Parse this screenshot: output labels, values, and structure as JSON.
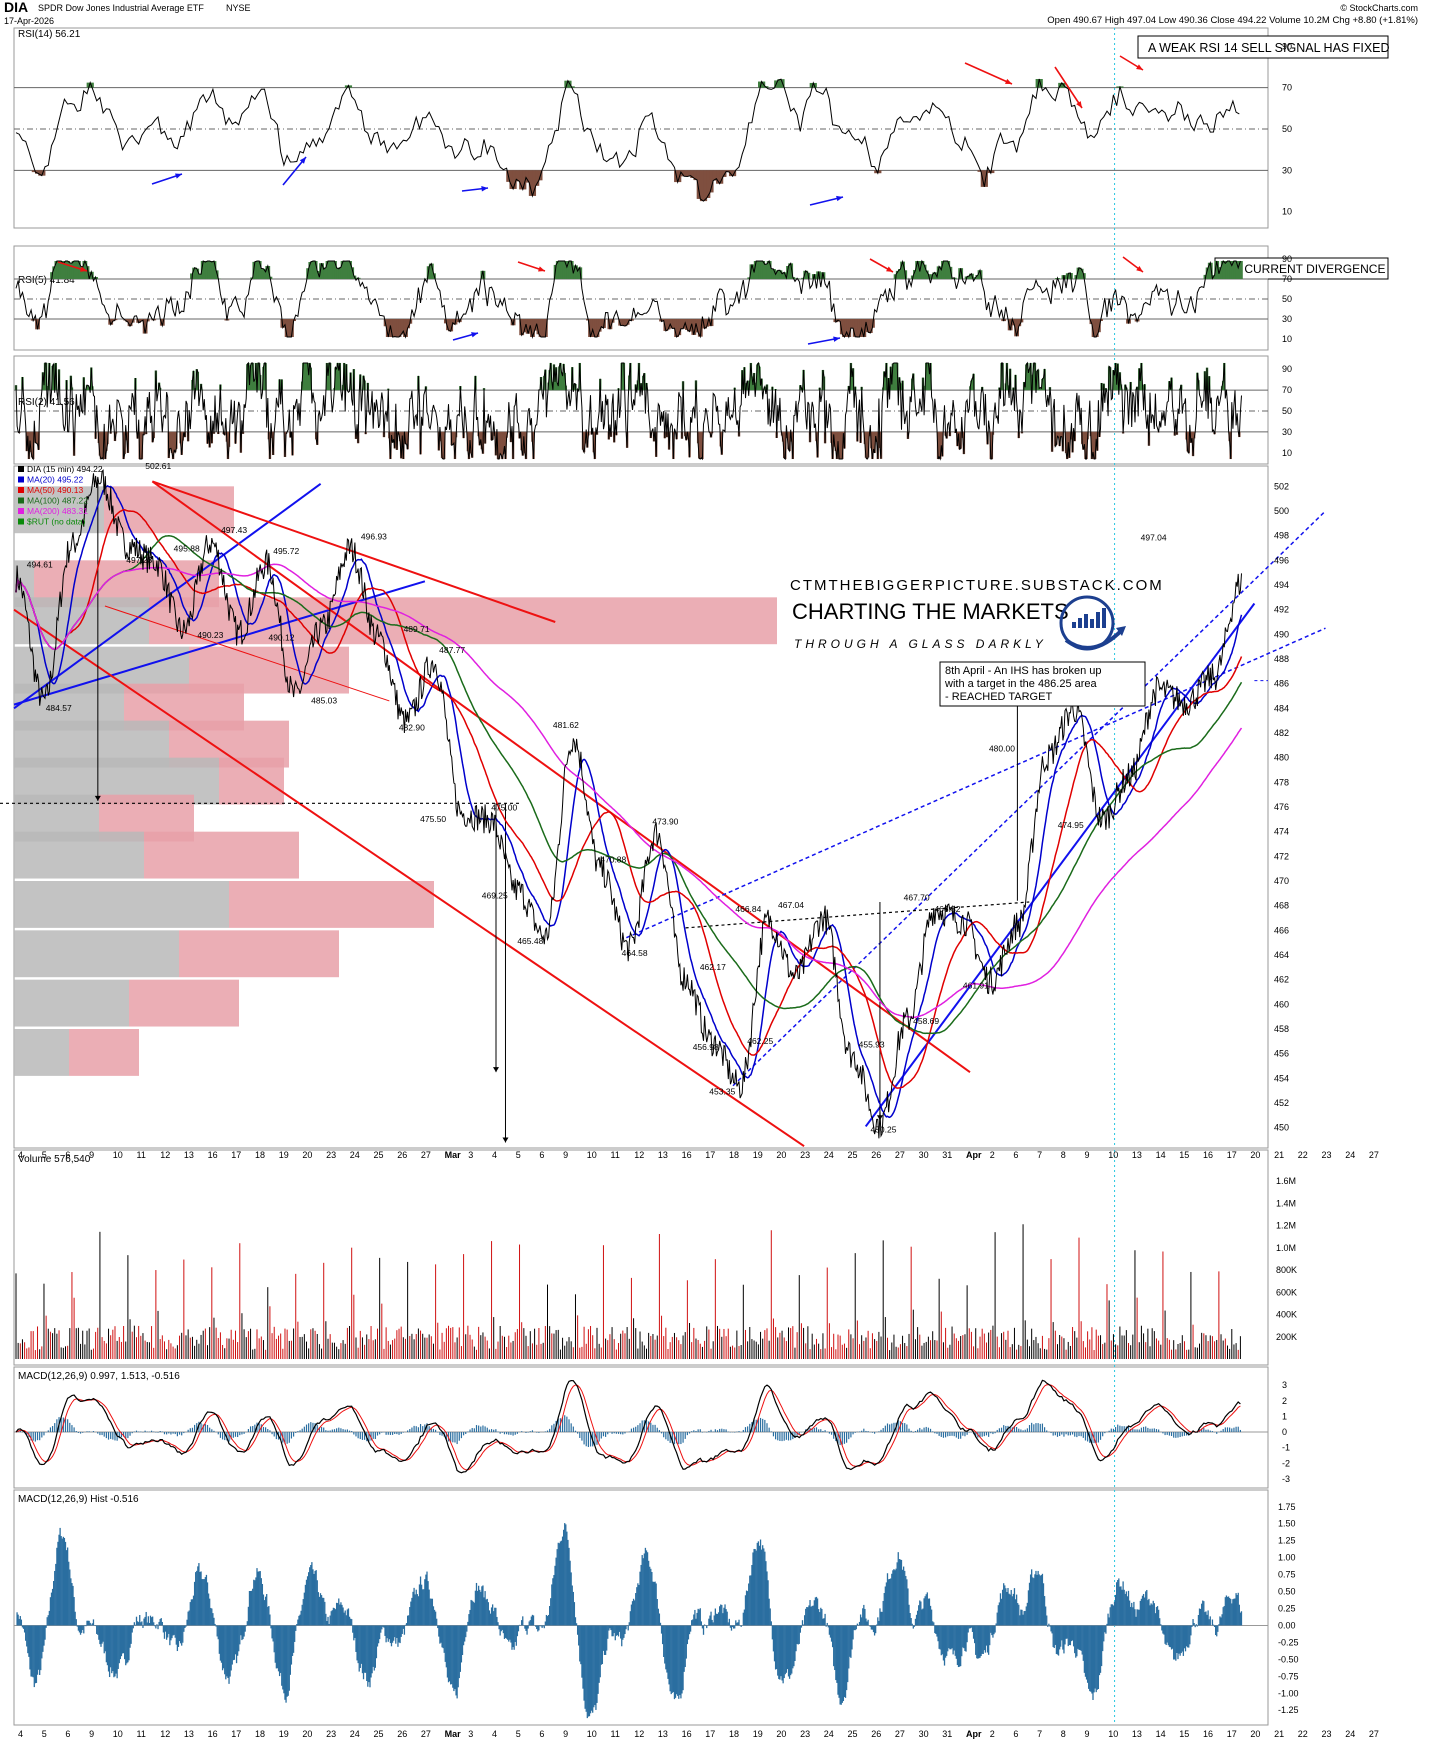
{
  "header": {
    "symbol": "DIA",
    "name": "SPDR Dow Jones Industrial Average ETF",
    "exchange": "NYSE",
    "date": "17-Apr-2026",
    "source": "© StockCharts.com",
    "quote": "Open 490.67  High 497.04  Low 490.36  Close 494.22  Volume 10.2M  Chg +8.80 (+1.81%)"
  },
  "colors": {
    "panel_border": "#9a9a9a",
    "price": "#000000",
    "ma20": "#0000cc",
    "ma50": "#e00000",
    "ma100": "#1a6b1a",
    "ma200": "#e020e0",
    "overbought": "#3f7f3f",
    "oversold": "#7f4f3f",
    "trendline_red": "#ee1111",
    "trendline_blue": "#1111ee",
    "volume_profile_red": "#e8a0a8",
    "volume_profile_grey": "#b8b8b8",
    "macd_hist": "#2a6ea0"
  },
  "panels": {
    "rsi14": {
      "label": "RSI(14) 56.21",
      "note": "A WEAK RSI 14 SELL SIGNAL HAS FIXED",
      "ticks": [
        "90",
        "70",
        "50",
        "30",
        "10"
      ]
    },
    "rsi5": {
      "label": "RSI(5) 41.84",
      "note": "NO CURRENT DIVERGENCE",
      "ticks": [
        "90",
        "70",
        "50",
        "30",
        "10"
      ]
    },
    "rsi2": {
      "label": "RSI(2) 41.56",
      "ticks": [
        "90",
        "70",
        "50",
        "30",
        "10"
      ]
    },
    "price": {
      "legend": [
        "DIA (15 min) 494.22",
        "MA(20) 495.22",
        "MA(50) 490.13",
        "MA(100) 487.22",
        "MA(200) 483.31",
        "$RUT (no data)"
      ],
      "watermark_url": "CTMTHEBIGGERPICTURE.SUBSTACK.COM",
      "watermark_title": "CHARTING THE MARKETS",
      "watermark_sub": "THROUGH A GLASS DARKLY",
      "note_lines": [
        "8th April - An IHS has broken up",
        "with a target in the 486.25 area",
        "- REACHED TARGET"
      ]
    },
    "volume": {
      "label": "Volume 576,540",
      "ticks": [
        "1.6M",
        "1.4M",
        "1.2M",
        "1.0M",
        "800K",
        "600K",
        "400K",
        "200K"
      ]
    },
    "macd": {
      "label": "MACD(12,26,9) 0.997, 1.513, -0.516",
      "ticks": [
        "3",
        "2",
        "1",
        "0",
        "-1",
        "-2",
        "-3"
      ]
    },
    "hist": {
      "label": "MACD(12,26,9) Hist -0.516",
      "ticks": [
        "1.75",
        "1.50",
        "1.25",
        "1.00",
        "0.75",
        "0.50",
        "0.25",
        "0.00",
        "-0.25",
        "-0.50",
        "-0.75",
        "-1.00",
        "-1.25"
      ]
    }
  },
  "x_axis_labels": [
    "4",
    "5",
    "6",
    "9",
    "10",
    "11",
    "12",
    "13",
    "16",
    "17",
    "18",
    "19",
    "20",
    "23",
    "24",
    "25",
    "26",
    "27",
    "Mar",
    "3",
    "4",
    "5",
    "6",
    "9",
    "10",
    "11",
    "12",
    "13",
    "16",
    "17",
    "18",
    "19",
    "20",
    "23",
    "24",
    "25",
    "26",
    "27",
    "30",
    "31",
    "Apr",
    "2",
    "6",
    "7",
    "8",
    "9",
    "10",
    "13",
    "14",
    "15",
    "16",
    "17",
    "20",
    "21",
    "22",
    "23",
    "24",
    "27"
  ],
  "chart_data": {
    "type": "line",
    "title": "DIA SPDR Dow Jones Industrial Average ETF NYSE",
    "interval": "15 min",
    "ylim": [
      449,
      503
    ],
    "yticks": [
      450,
      452,
      454,
      456,
      458,
      460,
      462,
      464,
      466,
      468,
      470,
      472,
      474,
      476,
      478,
      480,
      482,
      484,
      486,
      488,
      490,
      492,
      494,
      496,
      498,
      500,
      502
    ],
    "series": [
      {
        "name": "DIA (15 min)",
        "x": [
          "Feb 4",
          "Feb 6",
          "Feb 9",
          "Feb 10",
          "Feb 11",
          "Feb 12",
          "Feb 13",
          "Feb 17",
          "Feb 19",
          "Feb 20",
          "Feb 23",
          "Feb 24",
          "Feb 26",
          "Feb 27",
          "Mar 2",
          "Mar 4",
          "Mar 5",
          "Mar 6",
          "Mar 9",
          "Mar 10",
          "Mar 12",
          "Mar 13",
          "Mar 16",
          "Mar 17",
          "Mar 19",
          "Mar 20",
          "Mar 23",
          "Mar 24",
          "Mar 25",
          "Mar 26",
          "Mar 27",
          "Mar 30",
          "Mar 31",
          "Apr 1",
          "Apr 2",
          "Apr 6",
          "Apr 7",
          "Apr 8",
          "Apr 9",
          "Apr 10",
          "Apr 13",
          "Apr 14",
          "Apr 15",
          "Apr 16",
          "Apr 17"
        ],
        "values": [
          494.61,
          484.57,
          497.23,
          502.61,
          497.23,
          495.88,
          490.23,
          497.43,
          490.12,
          495.72,
          485.03,
          490.5,
          496.93,
          489.71,
          482.9,
          487.77,
          475.5,
          475.0,
          469.25,
          465.48,
          481.62,
          470.88,
          464.58,
          473.9,
          462.17,
          456.98,
          453.35,
          466.84,
          462.25,
          467.04,
          455.93,
          450.25,
          458.69,
          467.7,
          466.82,
          461.91,
          466.5,
          480.0,
          483.95,
          474.95,
          478.5,
          485.5,
          484.5,
          486.5,
          494.22
        ]
      }
    ],
    "price_labels": [
      "494.61",
      "484.57",
      "497.23",
      "502.61",
      "495.88",
      "490.23",
      "497.43",
      "490.12",
      "495.72",
      "485.03",
      "496.93",
      "489.71",
      "482.90",
      "487.77",
      "475.50",
      "475.00",
      "469.25",
      "465.48",
      "481.62",
      "470.88",
      "464.58",
      "473.90",
      "462.17",
      "456.98",
      "453.35",
      "466.84",
      "462.25",
      "467.04",
      "455.93",
      "450.25",
      "458.69",
      "467.70",
      "466.82",
      "461.91",
      "480.00",
      "483.95",
      "474.95",
      "497.04"
    ],
    "moving_averages": [
      {
        "name": "MA(20)",
        "last": 495.22
      },
      {
        "name": "MA(50)",
        "last": 490.13
      },
      {
        "name": "MA(100)",
        "last": 487.22
      },
      {
        "name": "MA(200)",
        "last": 483.31
      }
    ],
    "target": 486.25
  }
}
